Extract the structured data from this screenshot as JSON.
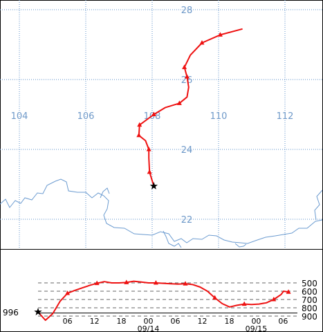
{
  "map": {
    "lon_labels": [
      "104",
      "106",
      "108",
      "110",
      "112"
    ],
    "lat_labels": [
      "28",
      "26",
      "24",
      "22"
    ],
    "track_color": "#ee1111",
    "grid_color": "#5b8fc9",
    "label_color": "#6d98c8",
    "coast_color": "#6b9bd0",
    "start_marker": "black-star-icon",
    "track_points": [
      {
        "lon": 108.05,
        "lat": 22.95
      },
      {
        "lon": 107.92,
        "lat": 23.35
      },
      {
        "lon": 107.9,
        "lat": 23.75
      },
      {
        "lon": 107.9,
        "lat": 24.0
      },
      {
        "lon": 107.8,
        "lat": 24.25
      },
      {
        "lon": 107.6,
        "lat": 24.4
      },
      {
        "lon": 107.62,
        "lat": 24.7
      },
      {
        "lon": 108.05,
        "lat": 25.0
      },
      {
        "lon": 108.4,
        "lat": 25.2
      },
      {
        "lon": 108.82,
        "lat": 25.32
      },
      {
        "lon": 109.05,
        "lat": 25.5
      },
      {
        "lon": 109.1,
        "lat": 25.78
      },
      {
        "lon": 109.05,
        "lat": 26.08
      },
      {
        "lon": 108.97,
        "lat": 26.35
      },
      {
        "lon": 109.15,
        "lat": 26.7
      },
      {
        "lon": 109.5,
        "lat": 27.05
      },
      {
        "lon": 110.05,
        "lat": 27.28
      },
      {
        "lon": 110.72,
        "lat": 27.45
      }
    ]
  },
  "pressure": {
    "levels": [
      "500",
      "600",
      "700",
      "800",
      "900"
    ],
    "surface_label": "996",
    "time_labels": [
      "06",
      "12",
      "18",
      "00",
      "06",
      "12",
      "18",
      "00",
      "06"
    ],
    "date_labels": [
      "09/14",
      "09/15"
    ],
    "curve": [
      {
        "t": 0,
        "p": 996
      },
      {
        "t": 3,
        "p": 950
      },
      {
        "t": 6,
        "p": 870
      },
      {
        "t": 9,
        "p": 720
      },
      {
        "t": 12,
        "p": 625
      },
      {
        "t": 15,
        "p": 590
      },
      {
        "t": 18,
        "p": 560
      },
      {
        "t": 21,
        "p": 530
      },
      {
        "t": 24,
        "p": 505
      },
      {
        "t": 27,
        "p": 485
      },
      {
        "t": 30,
        "p": 500
      },
      {
        "t": 33,
        "p": 500
      },
      {
        "t": 36,
        "p": 495
      },
      {
        "t": 39,
        "p": 480
      },
      {
        "t": 42,
        "p": 490
      },
      {
        "t": 45,
        "p": 500
      },
      {
        "t": 48,
        "p": 500
      },
      {
        "t": 51,
        "p": 505
      },
      {
        "t": 54,
        "p": 510
      },
      {
        "t": 57,
        "p": 515
      },
      {
        "t": 60,
        "p": 510
      },
      {
        "t": 63,
        "p": 520
      },
      {
        "t": 66,
        "p": 550
      },
      {
        "t": 69,
        "p": 600
      },
      {
        "t": 72,
        "p": 680
      },
      {
        "t": 75,
        "p": 750
      },
      {
        "t": 78,
        "p": 790
      },
      {
        "t": 81,
        "p": 770
      },
      {
        "t": 84,
        "p": 755
      },
      {
        "t": 87,
        "p": 760
      },
      {
        "t": 90,
        "p": 755
      },
      {
        "t": 93,
        "p": 740
      },
      {
        "t": 96,
        "p": 700
      },
      {
        "t": 99,
        "p": 640
      },
      {
        "t": 100,
        "p": 600
      },
      {
        "t": 102,
        "p": 610
      }
    ]
  }
}
